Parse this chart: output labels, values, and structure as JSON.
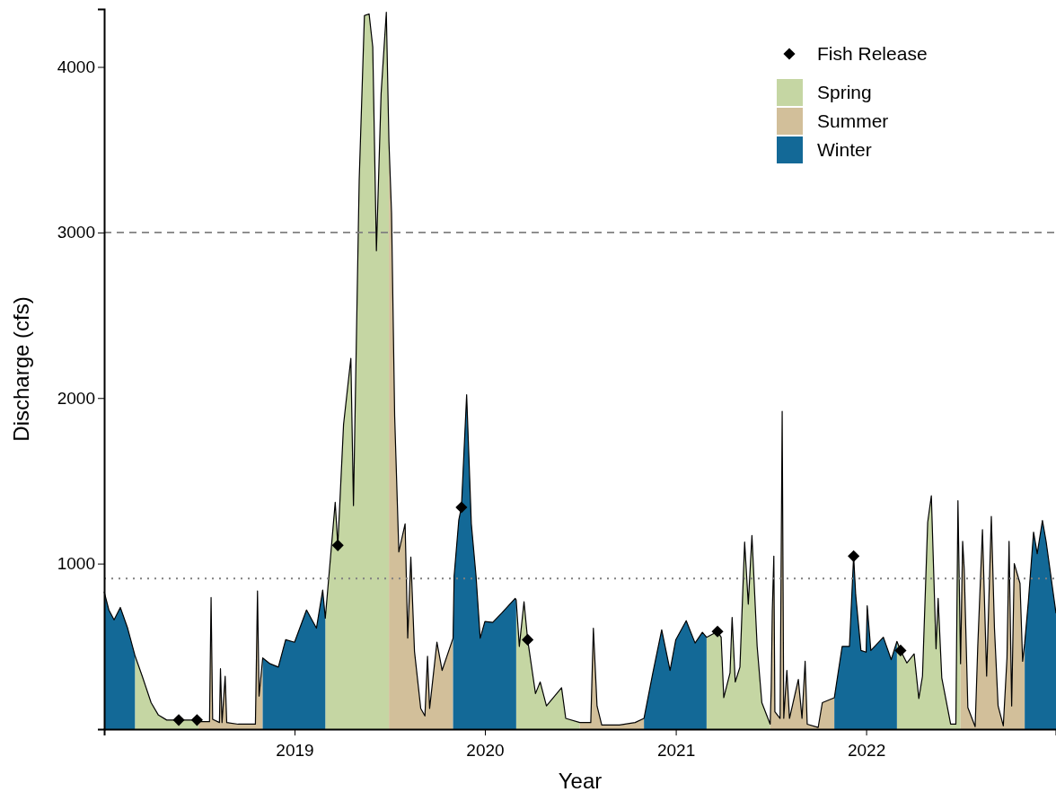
{
  "chart_data": {
    "type": "area",
    "xlabel": "Year",
    "ylabel": "Discharge (cfs)",
    "xlim": [
      "2018-01-01",
      "2022-12-31"
    ],
    "xticks": [
      {
        "value": "2019-01-01",
        "label": "2019"
      },
      {
        "value": "2020-01-01",
        "label": "2020"
      },
      {
        "value": "2021-01-01",
        "label": "2021"
      },
      {
        "value": "2022-01-01",
        "label": "2022"
      }
    ],
    "ylim": [
      0,
      4350
    ],
    "yticks": [
      1000,
      2000,
      3000,
      4000
    ],
    "grid": false,
    "legend": "top right",
    "ref_lines": [
      {
        "axis": "y",
        "value": 3000,
        "color": "#808080",
        "line_style": "dashed"
      },
      {
        "axis": "y",
        "value": 910,
        "color": "#808080",
        "line_style": "dotted"
      }
    ],
    "series": [
      {
        "name": "Fish Release",
        "type": "scatter",
        "marker": "diamond",
        "color": "#000000",
        "x": [
          "2018-05-24",
          "2018-06-28",
          "2019-03-25",
          "2019-11-17",
          "2020-03-23",
          "2021-03-22",
          "2021-12-08",
          "2022-03-08"
        ],
        "values": [
          55,
          55,
          1110,
          1340,
          540,
          590,
          1045,
          475
        ]
      },
      {
        "name": "Spring",
        "color": "#c5d6a3",
        "x": [
          "2018-03-01",
          "2018-03-15",
          "2018-04-01",
          "2018-04-15",
          "2018-05-01",
          "2018-05-24",
          "2018-06-15",
          "2018-06-28",
          "2018-07-01",
          "2018-07-02",
          "2019-03-01",
          "2019-03-20",
          "2019-03-25",
          "2019-04-05",
          "2019-04-19",
          "2019-04-24",
          "2019-05-05",
          "2019-05-15",
          "2019-05-24",
          "2019-05-31",
          "2019-06-07",
          "2019-06-16",
          "2019-06-26",
          "2019-07-01",
          "2019-07-02",
          "2020-03-01",
          "2020-03-07",
          "2020-03-16",
          "2020-03-23",
          "2020-04-07",
          "2020-04-16",
          "2020-04-28",
          "2020-05-27",
          "2020-06-04",
          "2020-07-01",
          "2020-07-02",
          "2021-03-01",
          "2021-03-22",
          "2021-03-29",
          "2021-04-03",
          "2021-04-15",
          "2021-04-19",
          "2021-04-25",
          "2021-05-04",
          "2021-05-13",
          "2021-05-20",
          "2021-05-27",
          "2021-06-06",
          "2021-06-15",
          "2021-07-01",
          "2021-07-02",
          "2022-03-01",
          "2022-03-08",
          "2022-03-20",
          "2022-04-03",
          "2022-04-12",
          "2022-04-19",
          "2022-04-29",
          "2022-05-06",
          "2022-05-15",
          "2022-05-19",
          "2022-05-26",
          "2022-06-12",
          "2022-06-22",
          "2022-06-26",
          "2022-07-01"
        ],
        "values": [
          445,
          320,
          160,
          85,
          55,
          55,
          55,
          55,
          45,
          null,
          670,
          1370,
          1110,
          1840,
          2240,
          1350,
          3320,
          4310,
          4320,
          4120,
          2890,
          3840,
          4330,
          3550,
          null,
          780,
          500,
          770,
          540,
          215,
          285,
          140,
          250,
          65,
          40,
          null,
          555,
          590,
          555,
          190,
          340,
          675,
          285,
          375,
          1130,
          755,
          1170,
          500,
          160,
          30,
          null,
          530,
          475,
          400,
          455,
          185,
          320,
          1250,
          1410,
          485,
          790,
          310,
          30,
          30,
          1380,
          395
        ]
      },
      {
        "name": "Summer",
        "color": "#d2bf9a",
        "x": [
          "2018-07-01",
          "2018-07-22",
          "2018-07-25",
          "2018-07-28",
          "2018-08-10",
          "2018-08-12",
          "2018-08-15",
          "2018-08-21",
          "2018-08-24",
          "2018-09-15",
          "2018-10-18",
          "2018-10-22",
          "2018-10-25",
          "2018-11-01",
          "2018-11-02",
          "2019-07-01",
          "2019-07-06",
          "2019-07-12",
          "2019-07-20",
          "2019-08-01",
          "2019-08-06",
          "2019-08-12",
          "2019-08-19",
          "2019-08-31",
          "2019-09-08",
          "2019-09-13",
          "2019-09-17",
          "2019-10-01",
          "2019-10-11",
          "2019-11-01",
          "2019-11-02",
          "2020-07-01",
          "2020-07-22",
          "2020-07-27",
          "2020-08-03",
          "2020-08-12",
          "2020-09-15",
          "2020-10-15",
          "2020-11-01",
          "2020-11-02",
          "2021-07-01",
          "2021-07-03",
          "2021-07-05",
          "2021-07-08",
          "2021-07-10",
          "2021-07-20",
          "2021-07-24",
          "2021-07-27",
          "2021-08-02",
          "2021-08-07",
          "2021-08-24",
          "2021-08-31",
          "2021-09-06",
          "2021-09-10",
          "2021-10-01",
          "2021-10-09",
          "2021-11-01",
          "2021-11-02",
          "2022-07-01",
          "2022-07-05",
          "2022-07-08",
          "2022-07-15",
          "2022-07-29",
          "2022-08-03",
          "2022-08-12",
          "2022-08-20",
          "2022-08-29",
          "2022-09-04",
          "2022-09-11",
          "2022-09-21",
          "2022-09-28",
          "2022-10-02",
          "2022-10-07",
          "2022-10-12",
          "2022-10-23",
          "2022-10-28",
          "2022-11-01"
        ],
        "values": [
          45,
          45,
          795,
          60,
          40,
          365,
          40,
          320,
          40,
          30,
          30,
          835,
          200,
          430,
          null,
          3550,
          3120,
          1890,
          1070,
          1240,
          550,
          1040,
          470,
          125,
          80,
          440,
          125,
          525,
          355,
          550,
          null,
          40,
          40,
          610,
          140,
          25,
          25,
          40,
          65,
          null,
          30,
          250,
          710,
          1045,
          105,
          65,
          1920,
          65,
          355,
          65,
          300,
          65,
          410,
          30,
          10,
          160,
          190,
          null,
          395,
          1135,
          970,
          130,
          15,
          500,
          1205,
          320,
          1285,
          610,
          140,
          20,
          430,
          1135,
          140,
          1000,
          880,
          410,
          520
        ]
      },
      {
        "name": "Winter",
        "color": "#136997",
        "x": [
          "2018-01-01",
          "2018-01-10",
          "2018-01-20",
          "2018-02-01",
          "2018-02-15",
          "2018-03-01",
          "2018-03-02",
          "2018-11-01",
          "2018-11-15",
          "2018-12-01",
          "2018-12-15",
          "2019-01-01",
          "2019-01-24",
          "2019-02-12",
          "2019-02-24",
          "2019-03-01",
          "2019-03-02",
          "2019-11-01",
          "2019-11-03",
          "2019-11-12",
          "2019-11-17",
          "2019-11-27",
          "2019-12-06",
          "2019-12-15",
          "2019-12-23",
          "2020-01-01",
          "2020-01-16",
          "2020-02-02",
          "2020-02-28",
          "2020-03-01",
          "2020-03-02",
          "2020-11-01",
          "2020-11-18",
          "2020-12-05",
          "2020-12-21",
          "2021-01-01",
          "2021-01-21",
          "2021-02-07",
          "2021-02-21",
          "2021-03-01",
          "2021-03-02",
          "2021-11-01",
          "2021-11-16",
          "2021-11-30",
          "2021-12-08",
          "2021-12-12",
          "2021-12-22",
          "2022-01-01",
          "2022-01-03",
          "2022-01-10",
          "2022-02-03",
          "2022-02-18",
          "2022-03-01",
          "2022-03-02",
          "2022-11-01",
          "2022-11-08",
          "2022-11-18",
          "2022-11-25",
          "2022-12-05",
          "2022-12-12",
          "2022-12-31"
        ],
        "values": [
          830,
          720,
          660,
          735,
          610,
          445,
          null,
          430,
          395,
          375,
          540,
          525,
          720,
          610,
          840,
          670,
          null,
          550,
          925,
          1265,
          1340,
          2020,
          1240,
          925,
          550,
          650,
          645,
          700,
          790,
          780,
          null,
          65,
          340,
          600,
          355,
          540,
          655,
          520,
          585,
          555,
          null,
          190,
          500,
          500,
          1045,
          810,
          475,
          465,
          745,
          475,
          555,
          420,
          530,
          null,
          520,
          770,
          1190,
          1060,
          1260,
          1135,
          700
        ]
      },
      {
        "type": "line",
        "color": "#000000",
        "x": [
          "2018-01-01",
          "2018-01-10",
          "2018-01-20",
          "2018-02-01",
          "2018-02-15",
          "2018-03-01",
          "2018-03-15",
          "2018-04-01",
          "2018-04-15",
          "2018-05-01",
          "2018-05-24",
          "2018-06-15",
          "2018-06-28",
          "2018-07-01",
          "2018-07-22",
          "2018-07-25",
          "2018-07-28",
          "2018-08-10",
          "2018-08-12",
          "2018-08-15",
          "2018-08-21",
          "2018-08-24",
          "2018-09-15",
          "2018-10-18",
          "2018-10-22",
          "2018-10-25",
          "2018-11-01",
          "2018-11-15",
          "2018-12-01",
          "2018-12-15",
          "2019-01-01",
          "2019-01-24",
          "2019-02-12",
          "2019-02-24",
          "2019-03-01",
          "2019-03-20",
          "2019-03-25",
          "2019-04-05",
          "2019-04-19",
          "2019-04-24",
          "2019-05-05",
          "2019-05-15",
          "2019-05-24",
          "2019-05-31",
          "2019-06-07",
          "2019-06-16",
          "2019-06-26",
          "2019-07-01",
          "2019-07-06",
          "2019-07-12",
          "2019-07-20",
          "2019-08-01",
          "2019-08-06",
          "2019-08-12",
          "2019-08-19",
          "2019-08-31",
          "2019-09-08",
          "2019-09-13",
          "2019-09-17",
          "2019-10-01",
          "2019-10-11",
          "2019-11-01",
          "2019-11-03",
          "2019-11-12",
          "2019-11-17",
          "2019-11-27",
          "2019-12-06",
          "2019-12-15",
          "2019-12-23",
          "2020-01-01",
          "2020-01-16",
          "2020-02-02",
          "2020-02-28",
          "2020-03-01",
          "2020-03-07",
          "2020-03-16",
          "2020-03-23",
          "2020-04-07",
          "2020-04-16",
          "2020-04-28",
          "2020-05-27",
          "2020-06-04",
          "2020-07-01",
          "2020-07-22",
          "2020-07-27",
          "2020-08-03",
          "2020-08-12",
          "2020-09-15",
          "2020-10-15",
          "2020-11-01",
          "2020-11-18",
          "2020-12-05",
          "2020-12-21",
          "2021-01-01",
          "2021-01-21",
          "2021-02-07",
          "2021-02-21",
          "2021-03-01",
          "2021-03-22",
          "2021-03-29",
          "2021-04-03",
          "2021-04-15",
          "2021-04-19",
          "2021-04-25",
          "2021-05-04",
          "2021-05-13",
          "2021-05-20",
          "2021-05-27",
          "2021-06-06",
          "2021-06-15",
          "2021-07-01",
          "2021-07-03",
          "2021-07-05",
          "2021-07-08",
          "2021-07-10",
          "2021-07-20",
          "2021-07-24",
          "2021-07-27",
          "2021-08-02",
          "2021-08-07",
          "2021-08-24",
          "2021-08-31",
          "2021-09-06",
          "2021-09-10",
          "2021-10-01",
          "2021-10-09",
          "2021-11-01",
          "2021-11-16",
          "2021-11-30",
          "2021-12-08",
          "2021-12-12",
          "2021-12-22",
          "2022-01-01",
          "2022-01-03",
          "2022-01-10",
          "2022-02-03",
          "2022-02-18",
          "2022-03-01",
          "2022-03-08",
          "2022-03-20",
          "2022-04-03",
          "2022-04-12",
          "2022-04-19",
          "2022-04-29",
          "2022-05-06",
          "2022-05-15",
          "2022-05-19",
          "2022-05-26",
          "2022-06-12",
          "2022-06-22",
          "2022-06-26",
          "2022-07-01",
          "2022-07-05",
          "2022-07-08",
          "2022-07-15",
          "2022-07-29",
          "2022-08-03",
          "2022-08-12",
          "2022-08-20",
          "2022-08-29",
          "2022-09-04",
          "2022-09-11",
          "2022-09-21",
          "2022-09-28",
          "2022-10-02",
          "2022-10-07",
          "2022-10-12",
          "2022-10-23",
          "2022-10-28",
          "2022-11-01",
          "2022-11-08",
          "2022-11-18",
          "2022-11-25",
          "2022-12-05",
          "2022-12-12",
          "2022-12-31"
        ],
        "values": [
          830,
          720,
          660,
          735,
          610,
          445,
          320,
          160,
          85,
          55,
          55,
          55,
          55,
          45,
          45,
          795,
          60,
          40,
          365,
          40,
          320,
          40,
          30,
          30,
          835,
          200,
          430,
          395,
          375,
          540,
          525,
          720,
          610,
          840,
          670,
          1370,
          1110,
          1840,
          2240,
          1350,
          3320,
          4310,
          4320,
          4120,
          2890,
          3840,
          4330,
          3550,
          3120,
          1890,
          1070,
          1240,
          550,
          1040,
          470,
          125,
          80,
          440,
          125,
          525,
          355,
          550,
          925,
          1265,
          1340,
          2020,
          1240,
          925,
          550,
          650,
          645,
          700,
          790,
          780,
          500,
          770,
          540,
          215,
          285,
          140,
          250,
          65,
          40,
          40,
          610,
          140,
          25,
          25,
          40,
          65,
          340,
          600,
          355,
          540,
          655,
          520,
          585,
          555,
          590,
          555,
          190,
          340,
          675,
          285,
          375,
          1130,
          755,
          1170,
          500,
          160,
          30,
          250,
          710,
          1045,
          105,
          65,
          1920,
          65,
          355,
          65,
          300,
          65,
          410,
          30,
          10,
          160,
          190,
          500,
          500,
          1045,
          810,
          475,
          465,
          745,
          475,
          555,
          420,
          530,
          475,
          400,
          455,
          185,
          320,
          1250,
          1410,
          485,
          790,
          310,
          30,
          30,
          1380,
          395,
          1135,
          970,
          130,
          15,
          500,
          1205,
          320,
          1285,
          610,
          140,
          20,
          430,
          1135,
          140,
          1000,
          880,
          410,
          520,
          770,
          1190,
          1060,
          1260,
          1135,
          700
        ]
      }
    ]
  }
}
